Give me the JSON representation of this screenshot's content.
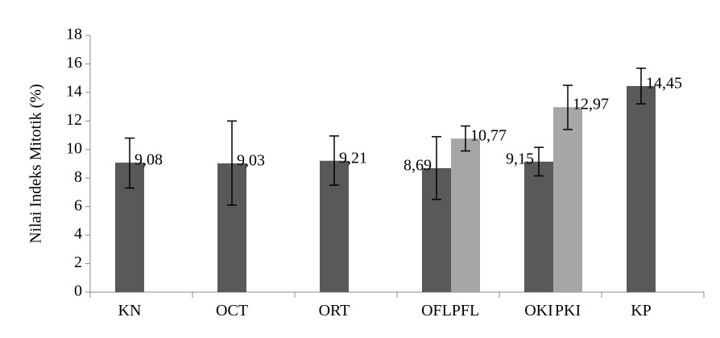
{
  "chart_data": {
    "type": "bar",
    "title": "",
    "xlabel": "",
    "ylabel": "Nilai Indeks Mitotik (%)",
    "ylim": [
      0,
      18
    ],
    "yticks": [
      0,
      2,
      4,
      6,
      8,
      10,
      12,
      14,
      16,
      18
    ],
    "groups": [
      "g1",
      "g2",
      "g3",
      "g4",
      "g5",
      "g6"
    ],
    "bars": [
      {
        "label": "KN",
        "group": 0,
        "slot": 0,
        "value": 9.08,
        "value_label": "9,08",
        "err_low": 7.3,
        "err_high": 10.8,
        "color": "#595959",
        "label_side": "right"
      },
      {
        "label": "OCT",
        "group": 1,
        "slot": 0,
        "value": 9.03,
        "value_label": "9,03",
        "err_low": 6.1,
        "err_high": 12.0,
        "color": "#595959",
        "label_side": "right"
      },
      {
        "label": "ORT",
        "group": 2,
        "slot": 0,
        "value": 9.21,
        "value_label": "9,21",
        "err_low": 7.5,
        "err_high": 10.95,
        "color": "#595959",
        "label_side": "right"
      },
      {
        "label": "OFL",
        "group": 3,
        "slot": 0,
        "value": 8.69,
        "value_label": "8,69",
        "err_low": 6.5,
        "err_high": 10.9,
        "color": "#595959",
        "label_side": "left"
      },
      {
        "label": "PFL",
        "group": 3,
        "slot": 1,
        "value": 10.77,
        "value_label": "10,77",
        "err_low": 9.9,
        "err_high": 11.65,
        "color": "#a6a6a6",
        "label_side": "right"
      },
      {
        "label": "OKI",
        "group": 4,
        "slot": 0,
        "value": 9.15,
        "value_label": "9,15",
        "err_low": 8.15,
        "err_high": 10.15,
        "color": "#595959",
        "label_side": "left"
      },
      {
        "label": "PKI",
        "group": 4,
        "slot": 1,
        "value": 12.97,
        "value_label": "12,97",
        "err_low": 11.4,
        "err_high": 14.5,
        "color": "#a6a6a6",
        "label_side": "right"
      },
      {
        "label": "KP",
        "group": 5,
        "slot": 0,
        "value": 14.45,
        "value_label": "14,45",
        "err_low": 13.2,
        "err_high": 15.7,
        "color": "#595959",
        "label_side": "right"
      }
    ],
    "grid": false,
    "legend": "none"
  }
}
